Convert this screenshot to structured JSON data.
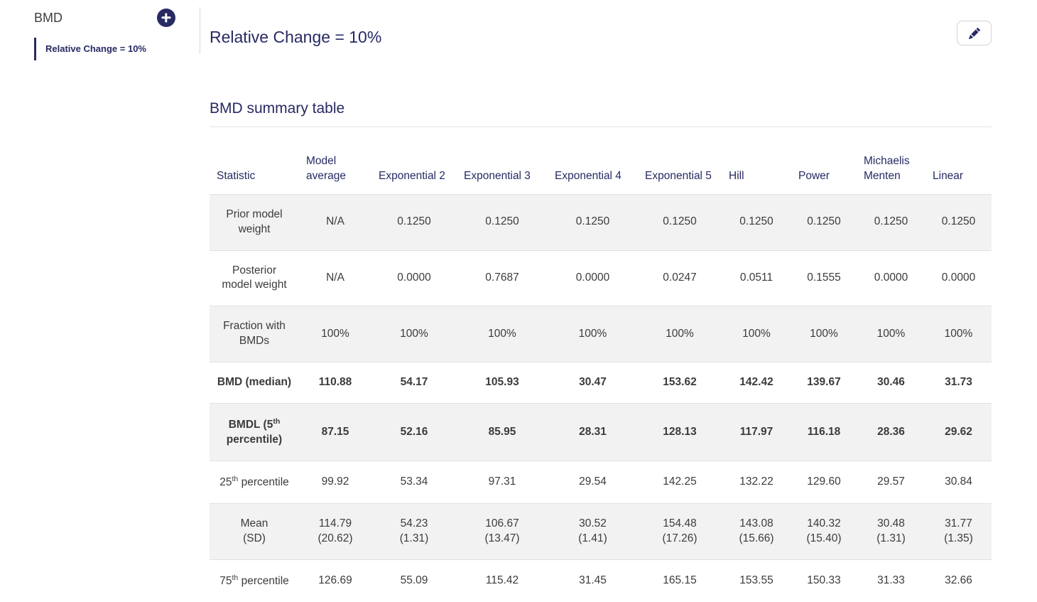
{
  "sidebar": {
    "title": "BMD",
    "add_icon": "plus-circle-icon",
    "items": [
      {
        "label": "Relative Change = 10%",
        "active": true
      }
    ]
  },
  "main": {
    "title": "Relative Change = 10%",
    "edit_icon": "pencil-icon"
  },
  "table": {
    "title": "BMD summary table",
    "columns": [
      "Statistic",
      "Model average",
      "Exponential 2",
      "Exponential 3",
      "Exponential 4",
      "Exponential 5",
      "Hill",
      "Power",
      "Michaelis Menten",
      "Linear"
    ],
    "rows": [
      {
        "name": "prior-model-weight",
        "bold": false,
        "label": {
          "pre": "Prior model weight",
          "sup": "",
          "post": ""
        },
        "values": [
          "N/A",
          "0.1250",
          "0.1250",
          "0.1250",
          "0.1250",
          "0.1250",
          "0.1250",
          "0.1250",
          "0.1250"
        ]
      },
      {
        "name": "posterior-model-weight",
        "bold": false,
        "label": {
          "pre": "Posterior model weight",
          "sup": "",
          "post": ""
        },
        "values": [
          "N/A",
          "0.0000",
          "0.7687",
          "0.0000",
          "0.0247",
          "0.0511",
          "0.1555",
          "0.0000",
          "0.0000"
        ]
      },
      {
        "name": "fraction-with-bmds",
        "bold": false,
        "label": {
          "pre": "Fraction with BMDs",
          "sup": "",
          "post": ""
        },
        "values": [
          "100%",
          "100%",
          "100%",
          "100%",
          "100%",
          "100%",
          "100%",
          "100%",
          "100%"
        ]
      },
      {
        "name": "bmd-median",
        "bold": true,
        "label": {
          "pre": "BMD (median)",
          "sup": "",
          "post": ""
        },
        "values": [
          "110.88",
          "54.17",
          "105.93",
          "30.47",
          "153.62",
          "142.42",
          "139.67",
          "30.46",
          "31.73"
        ]
      },
      {
        "name": "bmdl-5th-percentile",
        "bold": true,
        "label": {
          "pre": "BMDL (5",
          "sup": "th",
          "post": " percentile)"
        },
        "values": [
          "87.15",
          "52.16",
          "85.95",
          "28.31",
          "128.13",
          "117.97",
          "116.18",
          "28.36",
          "29.62"
        ]
      },
      {
        "name": "25th-percentile",
        "bold": false,
        "label": {
          "pre": "25",
          "sup": "th",
          "post": " percentile"
        },
        "values": [
          "99.92",
          "53.34",
          "97.31",
          "29.54",
          "142.25",
          "132.22",
          "129.60",
          "29.57",
          "30.84"
        ]
      },
      {
        "name": "mean-sd",
        "bold": false,
        "label": {
          "pre": "Mean",
          "sup": "",
          "post": ""
        },
        "label2": "(SD)",
        "values": [
          "114.79",
          "54.23",
          "106.67",
          "30.52",
          "154.48",
          "143.08",
          "140.32",
          "30.48",
          "31.77"
        ],
        "values2": [
          "(20.62)",
          "(1.31)",
          "(13.47)",
          "(1.41)",
          "(17.26)",
          "(15.66)",
          "(15.40)",
          "(1.31)",
          "(1.35)"
        ]
      },
      {
        "name": "75th-percentile",
        "bold": false,
        "label": {
          "pre": "75",
          "sup": "th",
          "post": " percentile"
        },
        "values": [
          "126.69",
          "55.09",
          "115.42",
          "31.45",
          "165.15",
          "153.55",
          "150.33",
          "31.33",
          "32.66"
        ]
      }
    ]
  },
  "colors": {
    "accent_navy": "#272a63",
    "stripe_background": "#f2f2f2",
    "table_border": "#dee2e6",
    "body_text": "#3b3b3b"
  }
}
